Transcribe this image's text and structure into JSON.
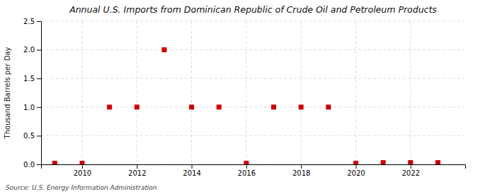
{
  "chart_data": {
    "type": "scatter",
    "title": "Annual U.S. Imports from Dominican Republic of Crude Oil and Petroleum Products",
    "y_label": "Thousand Barrels per Day",
    "annotations": [
      "Source: U.S. Energy Information Administration"
    ],
    "x": [
      2009,
      2010,
      2011,
      2012,
      2013,
      2014,
      2015,
      2016,
      2017,
      2018,
      2019,
      2020,
      2021,
      2022,
      2023
    ],
    "values": [
      0.02,
      0.02,
      1.0,
      1.0,
      2.0,
      1.0,
      1.0,
      0.02,
      1.0,
      1.0,
      1.0,
      0.02,
      0.03,
      0.03,
      0.03
    ],
    "color": "#cc0000",
    "marker": "square",
    "xlim": [
      2008.5,
      2024.0
    ],
    "ylim": [
      0,
      2.5
    ],
    "xticks": [
      2010,
      2012,
      2014,
      2016,
      2018,
      2020,
      2022
    ],
    "yticks": [
      {
        "value": 0.0,
        "label": "0.0"
      },
      0.5,
      {
        "value": 1.0,
        "label": "1.0"
      },
      1.5,
      {
        "value": 2.0,
        "label": "2.0"
      },
      2.5
    ],
    "grid": true
  }
}
